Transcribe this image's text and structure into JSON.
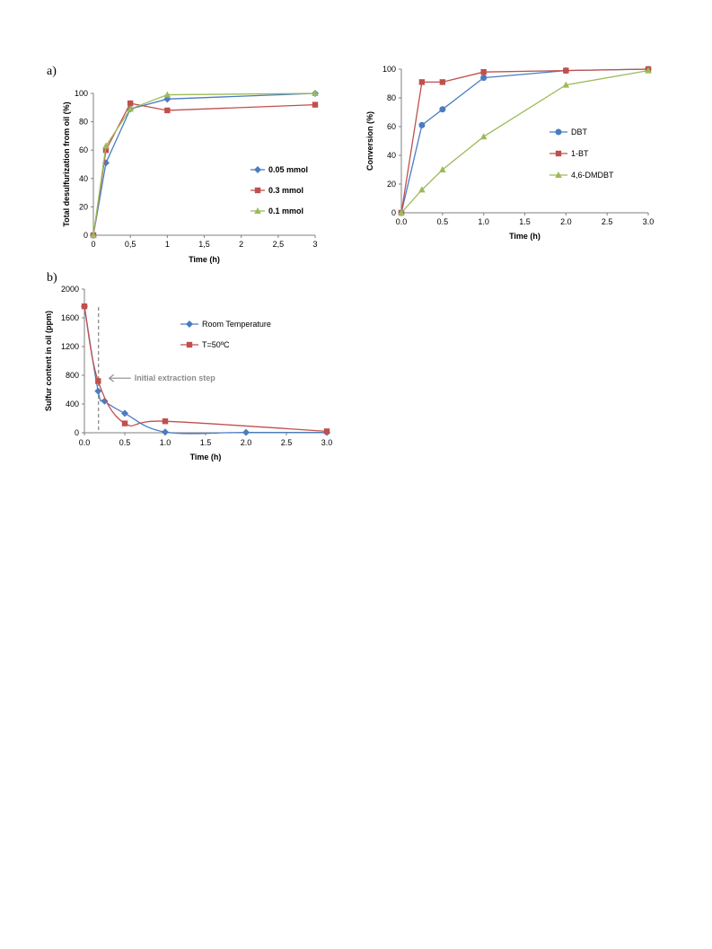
{
  "panels": {
    "a_label": "a)",
    "b_label": "b)"
  },
  "chart_data": [
    {
      "id": "chart1",
      "type": "line",
      "xlabel": "Time (h)",
      "ylabel": "Total desulfurization from oil (%)",
      "xlim": [
        0,
        3
      ],
      "ylim": [
        0,
        100
      ],
      "xticks": [
        0,
        0.5,
        1,
        1.5,
        2,
        2.5,
        3
      ],
      "xtick_labels": [
        "0",
        "0,5",
        "1",
        "1,5",
        "2",
        "2,5",
        "3"
      ],
      "yticks": [
        0,
        20,
        40,
        60,
        80,
        100
      ],
      "ytick_labels": [
        "0",
        "20",
        "40",
        "60",
        "80",
        "100"
      ],
      "legend_position": "right",
      "legend_bold": true,
      "curve": "linear",
      "series": [
        {
          "name": "0.05 mmol",
          "color": "#4a7cc0",
          "marker": "diamond",
          "points": [
            [
              0,
              0
            ],
            [
              0.17,
              51
            ],
            [
              0.5,
              89
            ],
            [
              1,
              96
            ],
            [
              3,
              100
            ]
          ]
        },
        {
          "name": "0.3 mmol",
          "color": "#c0504d",
          "marker": "square",
          "points": [
            [
              0,
              0
            ],
            [
              0.17,
              60
            ],
            [
              0.5,
              93
            ],
            [
              1,
              88
            ],
            [
              3,
              92
            ]
          ]
        },
        {
          "name": "0.1 mmol",
          "color": "#9bbb59",
          "marker": "triangle",
          "points": [
            [
              0,
              0
            ],
            [
              0.17,
              63
            ],
            [
              0.5,
              89
            ],
            [
              1,
              99
            ],
            [
              3,
              100
            ]
          ]
        }
      ]
    },
    {
      "id": "chart2",
      "type": "line",
      "xlabel": "Time (h)",
      "ylabel": "Conversion (%)",
      "xlim": [
        0,
        3
      ],
      "ylim": [
        0,
        100
      ],
      "xticks": [
        0,
        0.5,
        1,
        1.5,
        2,
        2.5,
        3
      ],
      "xtick_labels": [
        "0.0",
        "0.5",
        "1.0",
        "1.5",
        "2.0",
        "2.5",
        "3.0"
      ],
      "yticks": [
        0,
        20,
        40,
        60,
        80,
        100
      ],
      "ytick_labels": [
        "0",
        "20",
        "40",
        "60",
        "80",
        "100"
      ],
      "legend_position": "right",
      "legend_bold": false,
      "curve": "linear",
      "series": [
        {
          "name": "DBT",
          "color": "#4a7cc0",
          "marker": "circle",
          "points": [
            [
              0,
              0
            ],
            [
              0.25,
              61
            ],
            [
              0.5,
              72
            ],
            [
              1,
              94
            ],
            [
              2,
              99
            ],
            [
              3,
              100
            ]
          ]
        },
        {
          "name": "1-BT",
          "color": "#c0504d",
          "marker": "square",
          "points": [
            [
              0,
              0
            ],
            [
              0.25,
              91
            ],
            [
              0.5,
              91
            ],
            [
              1,
              98
            ],
            [
              2,
              99
            ],
            [
              3,
              100
            ]
          ]
        },
        {
          "name": "4,6-DMDBT",
          "color": "#9bbb59",
          "marker": "triangle",
          "points": [
            [
              0,
              0
            ],
            [
              0.25,
              16
            ],
            [
              0.5,
              30
            ],
            [
              1,
              53
            ],
            [
              2,
              89
            ],
            [
              3,
              99
            ]
          ]
        }
      ]
    },
    {
      "id": "chart3",
      "type": "line",
      "xlabel": "Time (h)",
      "ylabel": "Sulfur content in oil (ppm)",
      "xlim": [
        0,
        3
      ],
      "ylim": [
        0,
        2000
      ],
      "xticks": [
        0,
        0.5,
        1,
        1.5,
        2,
        2.5,
        3
      ],
      "xtick_labels": [
        "0.0",
        "0.5",
        "1.0",
        "1.5",
        "2.0",
        "2.5",
        "3.0"
      ],
      "yticks": [
        0,
        400,
        800,
        1200,
        1600,
        2000
      ],
      "ytick_labels": [
        "0",
        "400",
        "800",
        "1200",
        "1600",
        "2000"
      ],
      "legend_position": "top-right",
      "legend_bold": false,
      "curve": "smooth",
      "annotation": {
        "text": "Initial extraction step",
        "x": 0.18,
        "arrow_y": 760
      },
      "series": [
        {
          "name": "Room Temperature",
          "color": "#4a7cc0",
          "marker": "diamond",
          "points": [
            [
              0,
              1760
            ],
            [
              0.17,
              580
            ],
            [
              0.25,
              440
            ],
            [
              0.5,
              270
            ],
            [
              1,
              10
            ],
            [
              2,
              5
            ],
            [
              3,
              5
            ]
          ]
        },
        {
          "name": "T=50ºC",
          "color": "#c0504d",
          "marker": "square",
          "points": [
            [
              0,
              1760
            ],
            [
              0.17,
              720
            ],
            [
              0.5,
              130
            ],
            [
              1,
              160
            ],
            [
              3,
              20
            ]
          ]
        }
      ]
    }
  ]
}
